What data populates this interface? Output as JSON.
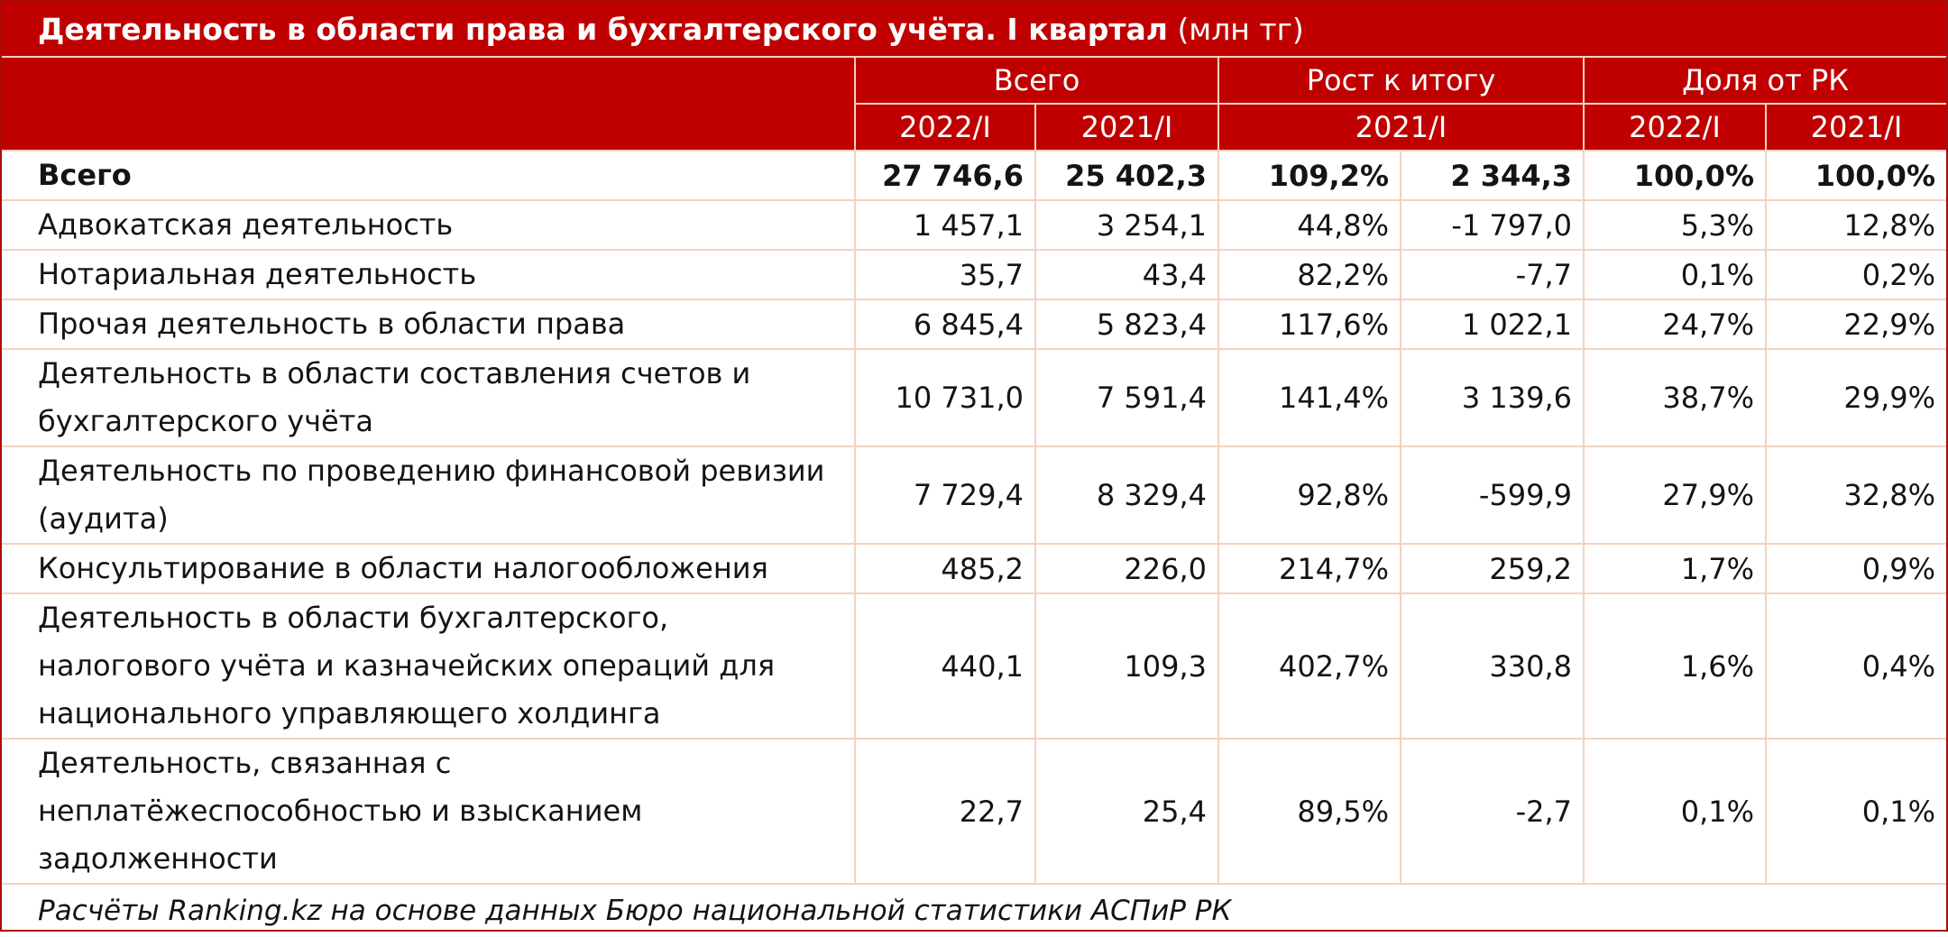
{
  "title": {
    "main": "Деятельность в области права и бухгалтерского учёта. I квартал",
    "unit": "(млн тг)"
  },
  "header": {
    "groups": {
      "total": "Всего",
      "growth": "Рост к итогу",
      "share": "Доля от РК"
    },
    "sub": {
      "total_2022": "2022/I",
      "total_2021": "2021/I",
      "growth_2021": "2021/I",
      "share_2022": "2022/I",
      "share_2021": "2021/I"
    }
  },
  "chart_data": {
    "type": "table",
    "title": "Деятельность в области права и бухгалтерского учёта. I квартал (млн тг)",
    "columns": [
      "",
      "Всего 2022/I",
      "Всего 2021/I",
      "Рост к итогу 2021/I",
      "Рост к итогу 2021/I",
      "Доля от РК 2022/I",
      "Доля от РК 2021/I"
    ],
    "rows": [
      {
        "name": "Всего",
        "v2022": "27 746,6",
        "v2021": "25 402,3",
        "growth_pct": "109,2%",
        "growth_abs": "2 344,3",
        "share2022": "100,0%",
        "share2021": "100,0%"
      },
      {
        "name": "Адвокатская деятельность",
        "v2022": "1 457,1",
        "v2021": "3 254,1",
        "growth_pct": "44,8%",
        "growth_abs": "-1 797,0",
        "share2022": "5,3%",
        "share2021": "12,8%"
      },
      {
        "name": "Нотариальная деятельность",
        "v2022": "35,7",
        "v2021": "43,4",
        "growth_pct": "82,2%",
        "growth_abs": "-7,7",
        "share2022": "0,1%",
        "share2021": "0,2%"
      },
      {
        "name": "Прочая деятельность в области права",
        "v2022": "6 845,4",
        "v2021": "5 823,4",
        "growth_pct": "117,6%",
        "growth_abs": "1 022,1",
        "share2022": "24,7%",
        "share2021": "22,9%"
      },
      {
        "name": "Деятельность в области составления счетов и бухгалтерского учёта",
        "v2022": "10 731,0",
        "v2021": "7 591,4",
        "growth_pct": "141,4%",
        "growth_abs": "3 139,6",
        "share2022": "38,7%",
        "share2021": "29,9%"
      },
      {
        "name": "Деятельность по проведению финансовой ревизии (аудита)",
        "v2022": "7 729,4",
        "v2021": "8 329,4",
        "growth_pct": "92,8%",
        "growth_abs": "-599,9",
        "share2022": "27,9%",
        "share2021": "32,8%"
      },
      {
        "name": "Консультирование в области налогообложения",
        "v2022": "485,2",
        "v2021": "226,0",
        "growth_pct": "214,7%",
        "growth_abs": "259,2",
        "share2022": "1,7%",
        "share2021": "0,9%"
      },
      {
        "name": "Деятельность в области бухгалтерского, налогового учёта и казначейских операций для национального управляющего холдинга",
        "v2022": "440,1",
        "v2021": "109,3",
        "growth_pct": "402,7%",
        "growth_abs": "330,8",
        "share2022": "1,6%",
        "share2021": "0,4%"
      },
      {
        "name": "Деятельность, связанная с неплатёжеспособностью и взысканием задолженности",
        "v2022": "22,7",
        "v2021": "25,4",
        "growth_pct": "89,5%",
        "growth_abs": "-2,7",
        "share2022": "0,1%",
        "share2021": "0,1%"
      }
    ]
  },
  "source": "Расчёты Ranking.kz на основе данных Бюро национальной статистики АСПиР РК",
  "colors": {
    "header_bg": "#c00000",
    "header_text": "#ffffff",
    "grid_line": "#f3d2bf",
    "frame": "#a80d0d"
  }
}
